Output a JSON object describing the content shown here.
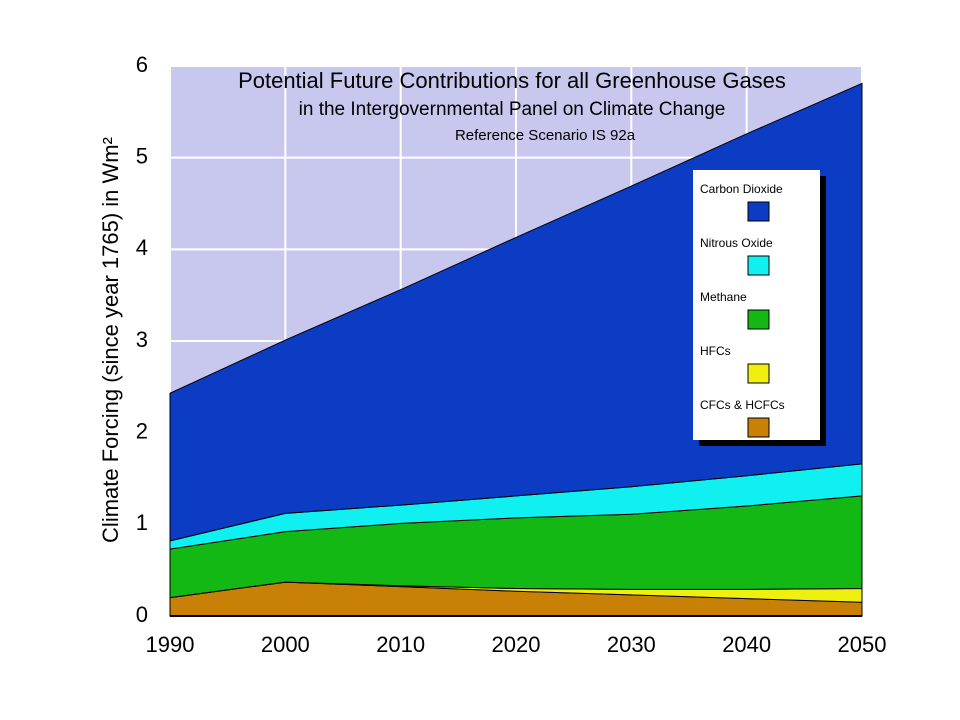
{
  "chart_data": {
    "type": "stacked-area",
    "title": "Potential Future Contributions for all Greenhouse Gases",
    "subtitle": "in the Intergovernmental Panel on Climate Change",
    "note": "Reference Scenario IS 92a",
    "y_label": "Climate Forcing (since year 1765) in Wm²",
    "x": [
      1990,
      2000,
      2010,
      2020,
      2030,
      2040,
      2050
    ],
    "series": [
      {
        "name": "CFCs & HCFCs",
        "color": "#c98006",
        "values": [
          0.2,
          0.37,
          0.32,
          0.27,
          0.23,
          0.19,
          0.15
        ]
      },
      {
        "name": "HFCs",
        "color": "#f0f010",
        "values": [
          0,
          0,
          0.01,
          0.03,
          0.06,
          0.1,
          0.15
        ]
      },
      {
        "name": "Methane",
        "color": "#14b814",
        "values": [
          0.53,
          0.55,
          0.68,
          0.77,
          0.82,
          0.91,
          1.01
        ]
      },
      {
        "name": "Nitrous Oxide",
        "color": "#10f0f0",
        "values": [
          0.09,
          0.2,
          0.2,
          0.24,
          0.3,
          0.33,
          0.35
        ]
      },
      {
        "name": "Carbon Dioxide",
        "color": "#0c3cc4",
        "values": [
          1.61,
          1.89,
          2.35,
          2.82,
          3.28,
          3.73,
          4.15
        ]
      }
    ],
    "xlim": [
      1990,
      2050
    ],
    "ylim": [
      0,
      6
    ],
    "xticks": [
      1990,
      2000,
      2010,
      2020,
      2030,
      2040,
      2050
    ],
    "yticks": [
      0,
      1,
      2,
      3,
      4,
      5,
      6
    ],
    "grid": true,
    "plot_background": "#c8c8ee",
    "legend": "right"
  }
}
